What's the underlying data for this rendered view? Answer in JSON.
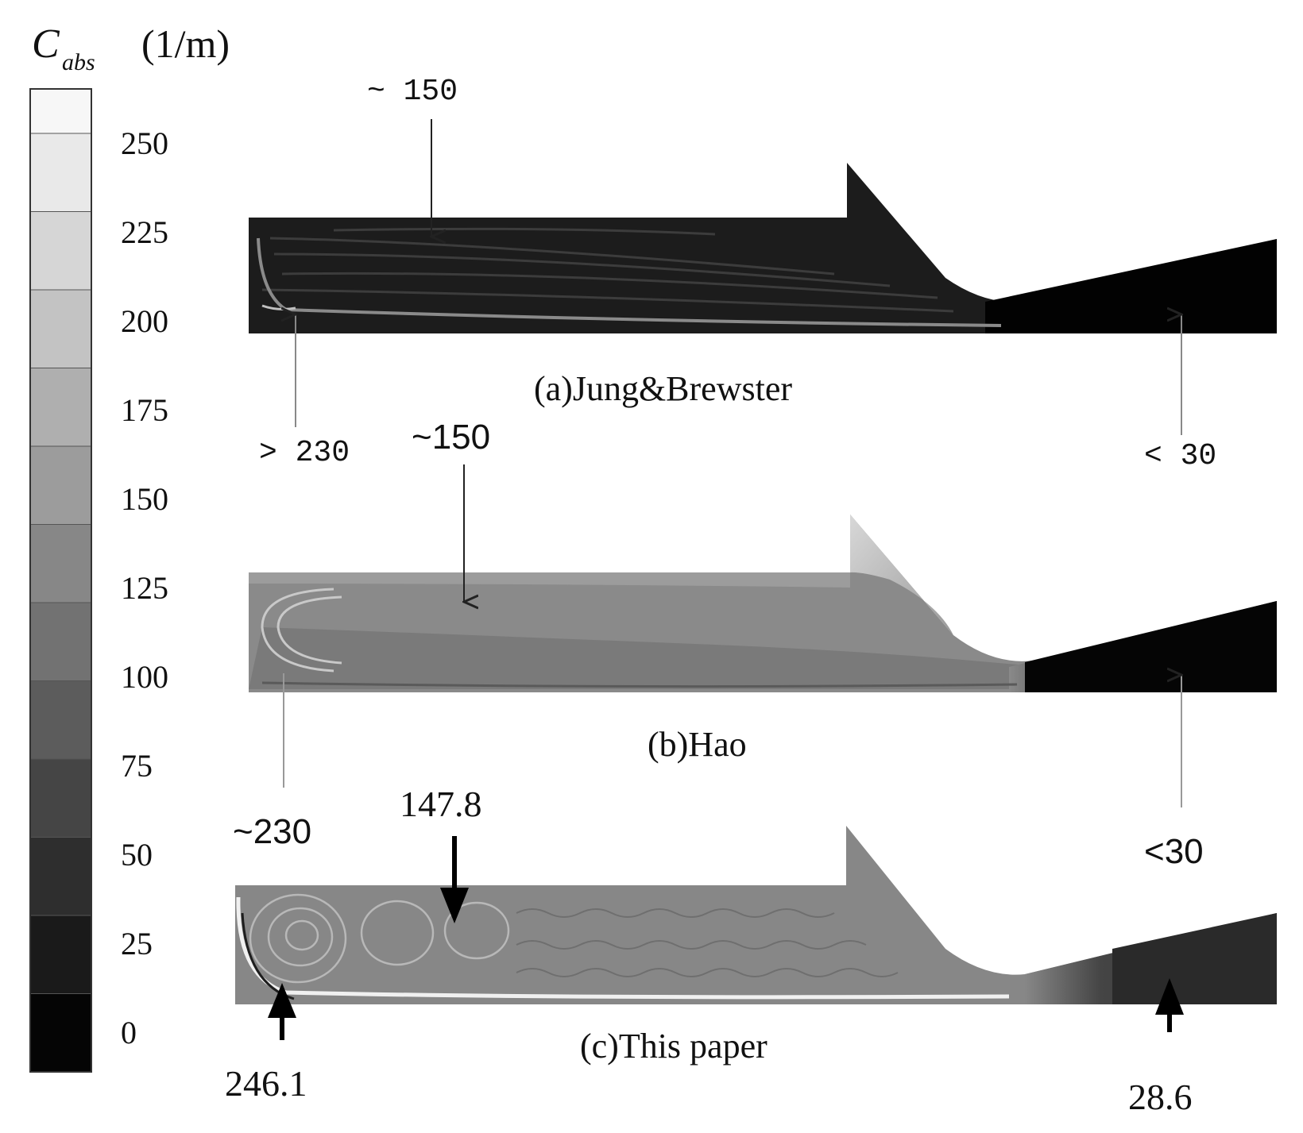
{
  "colorbar": {
    "symbol": "C",
    "subscript": "abs",
    "unit": "(1/m)",
    "ticks": [
      "250",
      "225",
      "200",
      "175",
      "150",
      "125",
      "100",
      "75",
      "50",
      "25",
      "0"
    ],
    "band_colors": [
      "#f7f7f7",
      "#e9e9e9",
      "#d6d6d6",
      "#c3c3c3",
      "#afafaf",
      "#9c9c9c",
      "#878787",
      "#727272",
      "#5c5c5c",
      "#454545",
      "#2e2e2e",
      "#1a1a1a",
      "#050505"
    ]
  },
  "panels": [
    {
      "caption": "(a)Jung&Brewster",
      "annotations": {
        "top": "~ 150",
        "bottom_left": "> 230",
        "bottom_right": "< 30"
      },
      "fill": "#1c1c1c"
    },
    {
      "caption": "(b)Hao",
      "annotations": {
        "top": "~150",
        "bottom_left": "~230",
        "bottom_right": "<30"
      },
      "fill": "#8a8a8a"
    },
    {
      "caption": "(c)This paper",
      "annotations": {
        "top": "147.8",
        "bottom_left": "246.1",
        "bottom_right": "28.6"
      },
      "fill": "#878787"
    }
  ]
}
